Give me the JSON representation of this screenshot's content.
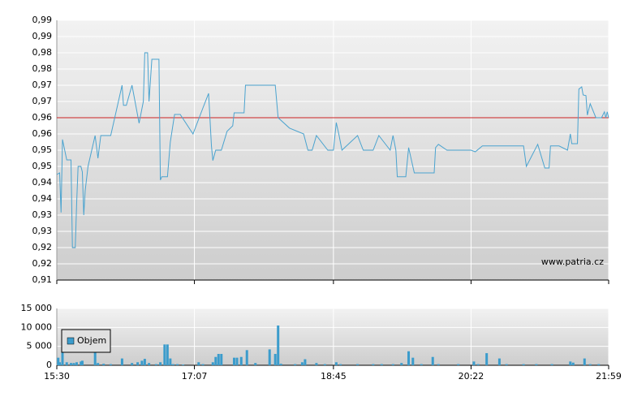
{
  "chart_data": [
    {
      "type": "line",
      "annotation": "www.patria.cz",
      "xlim": [
        930,
        1319
      ],
      "ylim": [
        0.91,
        0.99
      ],
      "yticks": [
        {
          "value": 0.99,
          "label": "0,99"
        },
        {
          "value": 0.985,
          "label": "0,99"
        },
        {
          "value": 0.98,
          "label": "0,98"
        },
        {
          "value": 0.975,
          "label": "0,98"
        },
        {
          "value": 0.97,
          "label": "0,97"
        },
        {
          "value": 0.965,
          "label": "0,97"
        },
        {
          "value": 0.96,
          "label": "0,96"
        },
        {
          "value": 0.955,
          "label": "0,96"
        },
        {
          "value": 0.95,
          "label": "0,95"
        },
        {
          "value": 0.945,
          "label": "0,95"
        },
        {
          "value": 0.94,
          "label": "0,94"
        },
        {
          "value": 0.935,
          "label": "0,94"
        },
        {
          "value": 0.93,
          "label": "0,93"
        },
        {
          "value": 0.925,
          "label": "0,93"
        },
        {
          "value": 0.92,
          "label": "0,92"
        },
        {
          "value": 0.915,
          "label": "0,92"
        },
        {
          "value": 0.91,
          "label": "0,91"
        }
      ],
      "grid": true,
      "reference_line": {
        "value": 0.96,
        "color": "#cc2222"
      },
      "series": [
        {
          "color": "#4aa3cf",
          "x": [
            930,
            932,
            933,
            934,
            937,
            940,
            941,
            943,
            944,
            945,
            947,
            948,
            949,
            950,
            952,
            957,
            959,
            961,
            968,
            976,
            977,
            979,
            983,
            988,
            991,
            992,
            994,
            995,
            997,
            1002,
            1003,
            1004,
            1008,
            1010,
            1013,
            1017,
            1026,
            1033,
            1037,
            1039,
            1040,
            1042,
            1046,
            1050,
            1054,
            1055,
            1062,
            1063,
            1084,
            1086,
            1094,
            1104,
            1107,
            1110,
            1113,
            1121,
            1125,
            1127,
            1129,
            1131,
            1142,
            1146,
            1153,
            1157,
            1165,
            1167,
            1169,
            1170,
            1176,
            1178,
            1182,
            1196,
            1197,
            1199,
            1205,
            1222,
            1225,
            1230,
            1259,
            1261,
            1269,
            1274,
            1277,
            1278,
            1284,
            1290,
            1292,
            1293,
            1297,
            1298,
            1300,
            1301,
            1303,
            1304,
            1306,
            1310,
            1314,
            1316,
            1317,
            1318,
            1319
          ],
          "values": [
            0.9425,
            0.943,
            0.9308,
            0.9533,
            0.947,
            0.947,
            0.92,
            0.92,
            0.9338,
            0.945,
            0.945,
            0.9433,
            0.93,
            0.9375,
            0.945,
            0.9545,
            0.9475,
            0.9545,
            0.9545,
            0.97,
            0.9638,
            0.9638,
            0.97,
            0.9583,
            0.965,
            0.98,
            0.98,
            0.965,
            0.978,
            0.978,
            0.9408,
            0.9418,
            0.9418,
            0.9525,
            0.961,
            0.961,
            0.955,
            0.963,
            0.9675,
            0.9513,
            0.9468,
            0.95,
            0.95,
            0.9558,
            0.9575,
            0.9615,
            0.9615,
            0.97,
            0.97,
            0.96,
            0.9568,
            0.955,
            0.95,
            0.95,
            0.9545,
            0.95,
            0.95,
            0.9585,
            0.9545,
            0.95,
            0.9545,
            0.95,
            0.95,
            0.9545,
            0.95,
            0.9545,
            0.95,
            0.9418,
            0.9418,
            0.9508,
            0.943,
            0.943,
            0.9508,
            0.9518,
            0.95,
            0.95,
            0.9495,
            0.9513,
            0.9513,
            0.945,
            0.9518,
            0.9445,
            0.9445,
            0.9513,
            0.9513,
            0.95,
            0.955,
            0.952,
            0.952,
            0.9688,
            0.9695,
            0.967,
            0.9668,
            0.9608,
            0.9643,
            0.96,
            0.96,
            0.9618,
            0.96,
            0.9618,
            0.96
          ]
        }
      ]
    },
    {
      "type": "bar",
      "xlim": [
        930,
        1319
      ],
      "xticks": [
        {
          "value": 930,
          "label": "15:30"
        },
        {
          "value": 1027,
          "label": "17:07"
        },
        {
          "value": 1125,
          "label": "18:45"
        },
        {
          "value": 1222,
          "label": "20:22"
        },
        {
          "value": 1319,
          "label": "21:59"
        }
      ],
      "ylim": [
        0,
        15000
      ],
      "yticks": [
        {
          "value": 0,
          "label": "0"
        },
        {
          "value": 5000,
          "label": "5 000"
        },
        {
          "value": 10000,
          "label": "10 000"
        },
        {
          "value": 15000,
          "label": "15 000"
        }
      ],
      "grid": true,
      "legend": "bottom-left",
      "series": [
        {
          "name": "Objem",
          "color": "#3b9ccc",
          "x": [
            931,
            932,
            934,
            937,
            940,
            942,
            944,
            947,
            948,
            957,
            959,
            963,
            968,
            976,
            983,
            987,
            990,
            992,
            995,
            1000,
            1003,
            1006,
            1008,
            1010,
            1012,
            1015,
            1019,
            1030,
            1033,
            1040,
            1042,
            1044,
            1046,
            1055,
            1057,
            1060,
            1064,
            1070,
            1080,
            1084,
            1086,
            1088,
            1098,
            1103,
            1105,
            1113,
            1119,
            1127,
            1130,
            1142,
            1153,
            1159,
            1167,
            1173,
            1178,
            1181,
            1187,
            1195,
            1199,
            1213,
            1224,
            1227,
            1233,
            1242,
            1247,
            1259,
            1268,
            1279,
            1292,
            1294,
            1302,
            1306,
            1312
          ],
          "values": [
            2000,
            800,
            3500,
            800,
            600,
            600,
            800,
            1000,
            1200,
            3500,
            600,
            400,
            300,
            1800,
            600,
            800,
            1200,
            1700,
            600,
            300,
            800,
            5500,
            5500,
            1800,
            300,
            300,
            200,
            800,
            300,
            800,
            2200,
            3000,
            3000,
            2000,
            2000,
            2200,
            4000,
            600,
            4200,
            3000,
            10500,
            400,
            300,
            800,
            1600,
            600,
            300,
            800,
            300,
            300,
            300,
            300,
            300,
            600,
            3700,
            2000,
            300,
            2200,
            300,
            300,
            1000,
            300,
            3200,
            1800,
            300,
            300,
            300,
            300,
            1000,
            700,
            1800,
            300,
            300
          ]
        }
      ]
    }
  ]
}
